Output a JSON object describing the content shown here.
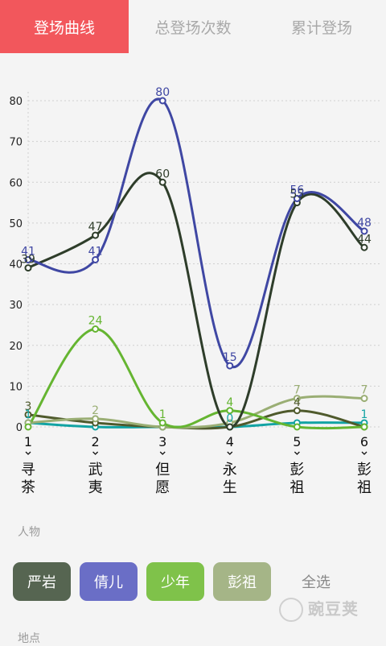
{
  "tabs": [
    {
      "label": "登场曲线",
      "active": true
    },
    {
      "label": "总登场次数",
      "active": false
    },
    {
      "label": "累计登场",
      "active": false
    }
  ],
  "chart_data": {
    "type": "line",
    "x": [
      "1",
      "2",
      "3",
      "4",
      "5",
      "6"
    ],
    "categories": [
      "寻茶",
      "武夷",
      "但愿",
      "永生",
      "彭祖",
      "彭祖"
    ],
    "ylim": [
      0,
      85
    ],
    "yticks": [
      0,
      10,
      20,
      30,
      40,
      50,
      60,
      70,
      80
    ],
    "grid": true,
    "series": [
      {
        "name": "严岩",
        "color": "#2e3d2a",
        "values": [
          39,
          47,
          60,
          0,
          55,
          44
        ]
      },
      {
        "name": "倩儿",
        "color": "#3f47a3",
        "values": [
          41,
          41,
          80,
          15,
          56,
          48
        ]
      },
      {
        "name": "少年",
        "color": "#65b531",
        "values": [
          0,
          24,
          1,
          4,
          0,
          0
        ]
      },
      {
        "name": "彭祖",
        "color": "#9aae74",
        "values": [
          1,
          2,
          0,
          1,
          7,
          7
        ]
      },
      {
        "name": "",
        "color": "#4f5a2c",
        "values": [
          3,
          1,
          0,
          0,
          4,
          0
        ]
      },
      {
        "name": "",
        "color": "#12a3a3",
        "values": [
          1,
          0,
          0,
          0,
          1,
          1
        ]
      }
    ],
    "data_labels": [
      {
        "series": 0,
        "points": [
          0,
          1,
          2,
          4,
          5
        ]
      },
      {
        "series": 1,
        "points": [
          0,
          1,
          2,
          3,
          4,
          5
        ]
      },
      {
        "series": 2,
        "points": [
          1,
          2,
          3
        ]
      },
      {
        "series": 3,
        "points": [
          1,
          4,
          5
        ]
      },
      {
        "series": 4,
        "points": [
          0,
          4
        ]
      },
      {
        "series": 5,
        "points": [
          0,
          3,
          5
        ]
      }
    ]
  },
  "filters": {
    "person_label": "人物",
    "buttons": [
      {
        "label": "严岩",
        "color": "#566551"
      },
      {
        "label": "倩儿",
        "color": "#6a6ec6"
      },
      {
        "label": "少年",
        "color": "#7fc24a"
      },
      {
        "label": "彭祖",
        "color": "#a5b587"
      }
    ],
    "select_all": "全选",
    "location_label": "地点"
  },
  "watermark": {
    "icon": "bean-logo-icon",
    "text": "豌豆荚"
  }
}
